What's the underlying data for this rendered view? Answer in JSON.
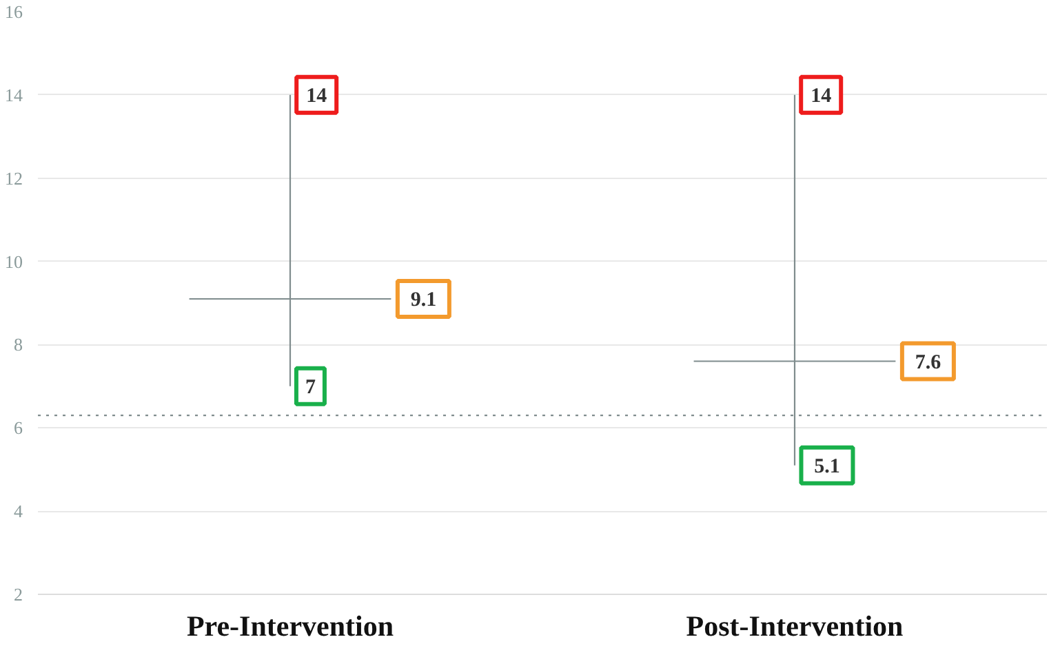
{
  "chart_data": {
    "type": "scatter",
    "categories": [
      "Pre-Intervention",
      "Post-Intervention"
    ],
    "ylim": [
      2,
      16
    ],
    "yticks": [
      2,
      4,
      6,
      8,
      10,
      12,
      14,
      16
    ],
    "grid": "y",
    "series": [
      {
        "type": "bar",
        "color": "#7f8c8d",
        "base": [
          7,
          5.1
        ],
        "values": [
          7,
          8.9
        ]
      },
      {
        "marker": "square",
        "color": "#ee1c1c",
        "values": [
          14,
          14
        ],
        "value_labels": [
          "14",
          "14"
        ]
      },
      {
        "marker": "square",
        "color": "#f39a2d",
        "values": [
          9.1,
          7.6
        ],
        "line_style": "solid",
        "value_labels": [
          "9.1",
          "7.6"
        ]
      },
      {
        "marker": "square",
        "color": "#19b04b",
        "values": [
          7,
          5.1
        ],
        "value_labels": [
          "7",
          "5.1"
        ]
      }
    ],
    "ref_lines": [
      {
        "axis": "y",
        "value": 6.3,
        "line_style": "dotted",
        "color": "#7f8c8d"
      }
    ]
  }
}
